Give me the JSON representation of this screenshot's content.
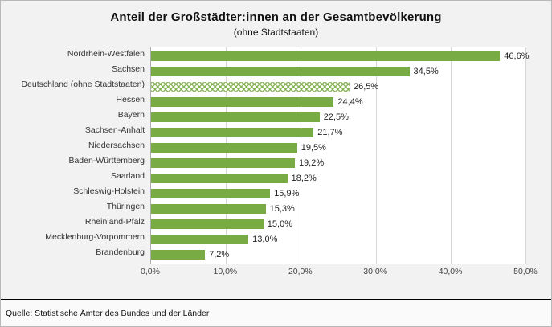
{
  "title": "Anteil der Großstädter:innen an der Gesamtbevölkerung",
  "subtitle": "(ohne Stadtstaaten)",
  "source": "Quelle: Statistische Ämter des Bundes und der Länder",
  "colors": {
    "bar_green": "#79ab44",
    "highlight_hatch_green": "#9cc06a",
    "plot_background": "#ffffff",
    "figure_background": "#f2f2f2"
  },
  "chart_data": {
    "type": "bar",
    "orientation": "horizontal",
    "title": "Anteil der Großstädter:innen an der Gesamtbevölkerung",
    "subtitle": "(ohne Stadtstaaten)",
    "categories": [
      "Nordrhein-Westfalen",
      "Sachsen",
      "Deutschland (ohne Stadtstaaten)",
      "Hessen",
      "Bayern",
      "Sachsen-Anhalt",
      "Niedersachsen",
      "Baden-Württemberg",
      "Saarland",
      "Schleswig-Holstein",
      "Thüringen",
      "Rheinland-Pfalz",
      "Mecklenburg-Vorpommern",
      "Brandenburg"
    ],
    "values": [
      46.6,
      34.5,
      26.5,
      24.4,
      22.5,
      21.7,
      19.5,
      19.2,
      18.2,
      15.9,
      15.3,
      15.0,
      13.0,
      7.2
    ],
    "value_labels": [
      "46,6%",
      "34,5%",
      "26,5%",
      "24,4%",
      "22,5%",
      "21,7%",
      "19,5%",
      "19,2%",
      "18,2%",
      "15,9%",
      "15,3%",
      "15,0%",
      "13,0%",
      "7,2%"
    ],
    "highlight_category": "Deutschland (ohne Stadtstaaten)",
    "xlabel": "",
    "ylabel": "",
    "xlim": [
      0,
      50
    ],
    "x_ticks": [
      0,
      10,
      20,
      30,
      40,
      50
    ],
    "x_tick_labels": [
      "0,0%",
      "10,0%",
      "20,0%",
      "30,0%",
      "40,0%",
      "50,0%"
    ],
    "grid": true,
    "legend": false
  }
}
